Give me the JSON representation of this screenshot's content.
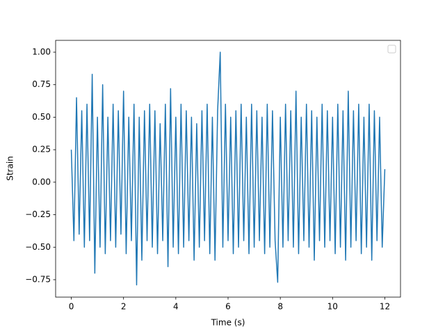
{
  "chart_data": {
    "type": "line",
    "xlabel": "Time (s)",
    "ylabel": "Strain",
    "x": [
      0,
      0.1,
      0.2,
      0.3,
      0.4,
      0.5,
      0.6,
      0.7,
      0.8,
      0.9,
      1,
      1.1,
      1.2,
      1.3,
      1.4,
      1.5,
      1.6,
      1.7,
      1.8,
      1.9,
      2,
      2.1,
      2.2,
      2.3,
      2.4,
      2.5,
      2.6,
      2.7,
      2.8,
      2.9,
      3,
      3.1,
      3.2,
      3.3,
      3.4,
      3.5,
      3.6,
      3.7,
      3.8,
      3.9,
      4,
      4.1,
      4.2,
      4.3,
      4.4,
      4.5,
      4.6,
      4.7,
      4.8,
      4.9,
      5,
      5.1,
      5.2,
      5.3,
      5.4,
      5.5,
      5.6,
      5.7,
      5.8,
      5.9,
      6,
      6.1,
      6.2,
      6.3,
      6.4,
      6.5,
      6.6,
      6.7,
      6.8,
      6.9,
      7,
      7.1,
      7.2,
      7.3,
      7.4,
      7.5,
      7.6,
      7.7,
      7.8,
      7.9,
      8,
      8.1,
      8.2,
      8.3,
      8.4,
      8.5,
      8.6,
      8.7,
      8.8,
      8.9,
      9,
      9.1,
      9.2,
      9.3,
      9.4,
      9.5,
      9.6,
      9.7,
      9.8,
      9.9,
      10,
      10.1,
      10.2,
      10.3,
      10.4,
      10.5,
      10.6,
      10.7,
      10.8,
      10.9,
      11,
      11.1,
      11.2,
      11.3,
      11.4,
      11.5,
      11.6,
      11.7,
      11.8,
      11.9,
      12
    ],
    "series": [
      {
        "color": "#1f77b4",
        "values": [
          0.25,
          -0.45,
          0.65,
          -0.4,
          0.55,
          -0.5,
          0.6,
          -0.45,
          0.83,
          -0.7,
          0.5,
          -0.5,
          0.75,
          -0.55,
          0.5,
          -0.45,
          0.6,
          -0.5,
          0.55,
          -0.4,
          0.7,
          -0.55,
          0.5,
          -0.45,
          0.6,
          -0.79,
          0.5,
          -0.6,
          0.55,
          -0.45,
          0.6,
          -0.5,
          0.55,
          -0.55,
          0.45,
          -0.45,
          0.6,
          -0.65,
          0.72,
          -0.5,
          0.5,
          -0.55,
          0.6,
          -0.5,
          0.55,
          -0.45,
          0.5,
          -0.6,
          0.45,
          -0.5,
          0.55,
          -0.45,
          0.6,
          -0.55,
          0.5,
          -0.6,
          0.55,
          1.0,
          -0.5,
          0.6,
          -0.45,
          0.5,
          -0.55,
          0.55,
          -0.5,
          0.6,
          -0.45,
          0.5,
          -0.55,
          0.6,
          -0.5,
          0.55,
          -0.45,
          0.5,
          -0.55,
          0.6,
          -0.5,
          0.55,
          -0.45,
          -0.77,
          0.5,
          -0.5,
          0.6,
          -0.45,
          0.55,
          -0.5,
          0.7,
          -0.55,
          0.5,
          -0.45,
          0.6,
          -0.5,
          0.55,
          -0.6,
          0.5,
          -0.45,
          0.6,
          -0.5,
          0.55,
          -0.45,
          0.5,
          -0.55,
          0.6,
          -0.5,
          0.55,
          -0.6,
          0.7,
          -0.5,
          0.55,
          -0.45,
          0.6,
          -0.55,
          0.5,
          -0.5,
          0.6,
          -0.6,
          0.55,
          -0.45,
          0.5,
          -0.5,
          0.1
        ]
      }
    ],
    "xlim": [
      -0.6,
      12.6
    ],
    "xticks": [
      0,
      2,
      4,
      6,
      8,
      10,
      12
    ],
    "ylim": [
      -0.884,
      1.091
    ],
    "yticks": [
      {
        "value": -0.75,
        "label": "−0.75"
      },
      {
        "value": -0.5,
        "label": "−0.50"
      },
      {
        "value": -0.25,
        "label": "−0.25"
      },
      {
        "value": 0,
        "label": "0.00"
      },
      {
        "value": 0.25,
        "label": "0.25"
      },
      {
        "value": 0.5,
        "label": "0.50"
      },
      {
        "value": 0.75,
        "label": "0.75"
      },
      {
        "value": 1,
        "label": "1.00"
      }
    ],
    "legend": "upper right",
    "grid": false
  }
}
